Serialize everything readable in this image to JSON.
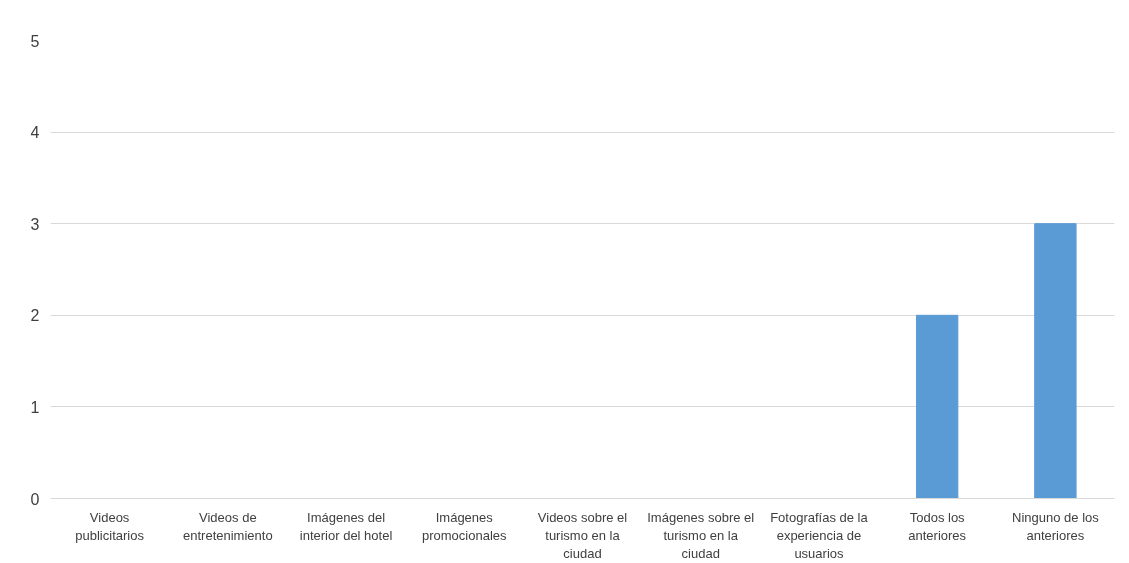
{
  "chart_data": {
    "type": "bar",
    "categories": [
      "Videos publicitarios",
      "Videos de entretenimiento",
      "Imágenes del interior del hotel",
      "Imágenes promocionales",
      "Videos sobre el turismo en la ciudad",
      "Imágenes sobre el turismo en la ciudad",
      "Fotografías de la experiencia de usuarios",
      "Todos los anteriores",
      "Ninguno de los anteriores"
    ],
    "values": [
      0,
      0,
      0,
      0,
      0,
      0,
      0,
      2,
      3
    ],
    "color": "#5b9bd5",
    "ylim": [
      0,
      5
    ],
    "yticks": [
      0,
      1,
      2,
      3,
      4,
      5
    ],
    "grid": "y"
  }
}
